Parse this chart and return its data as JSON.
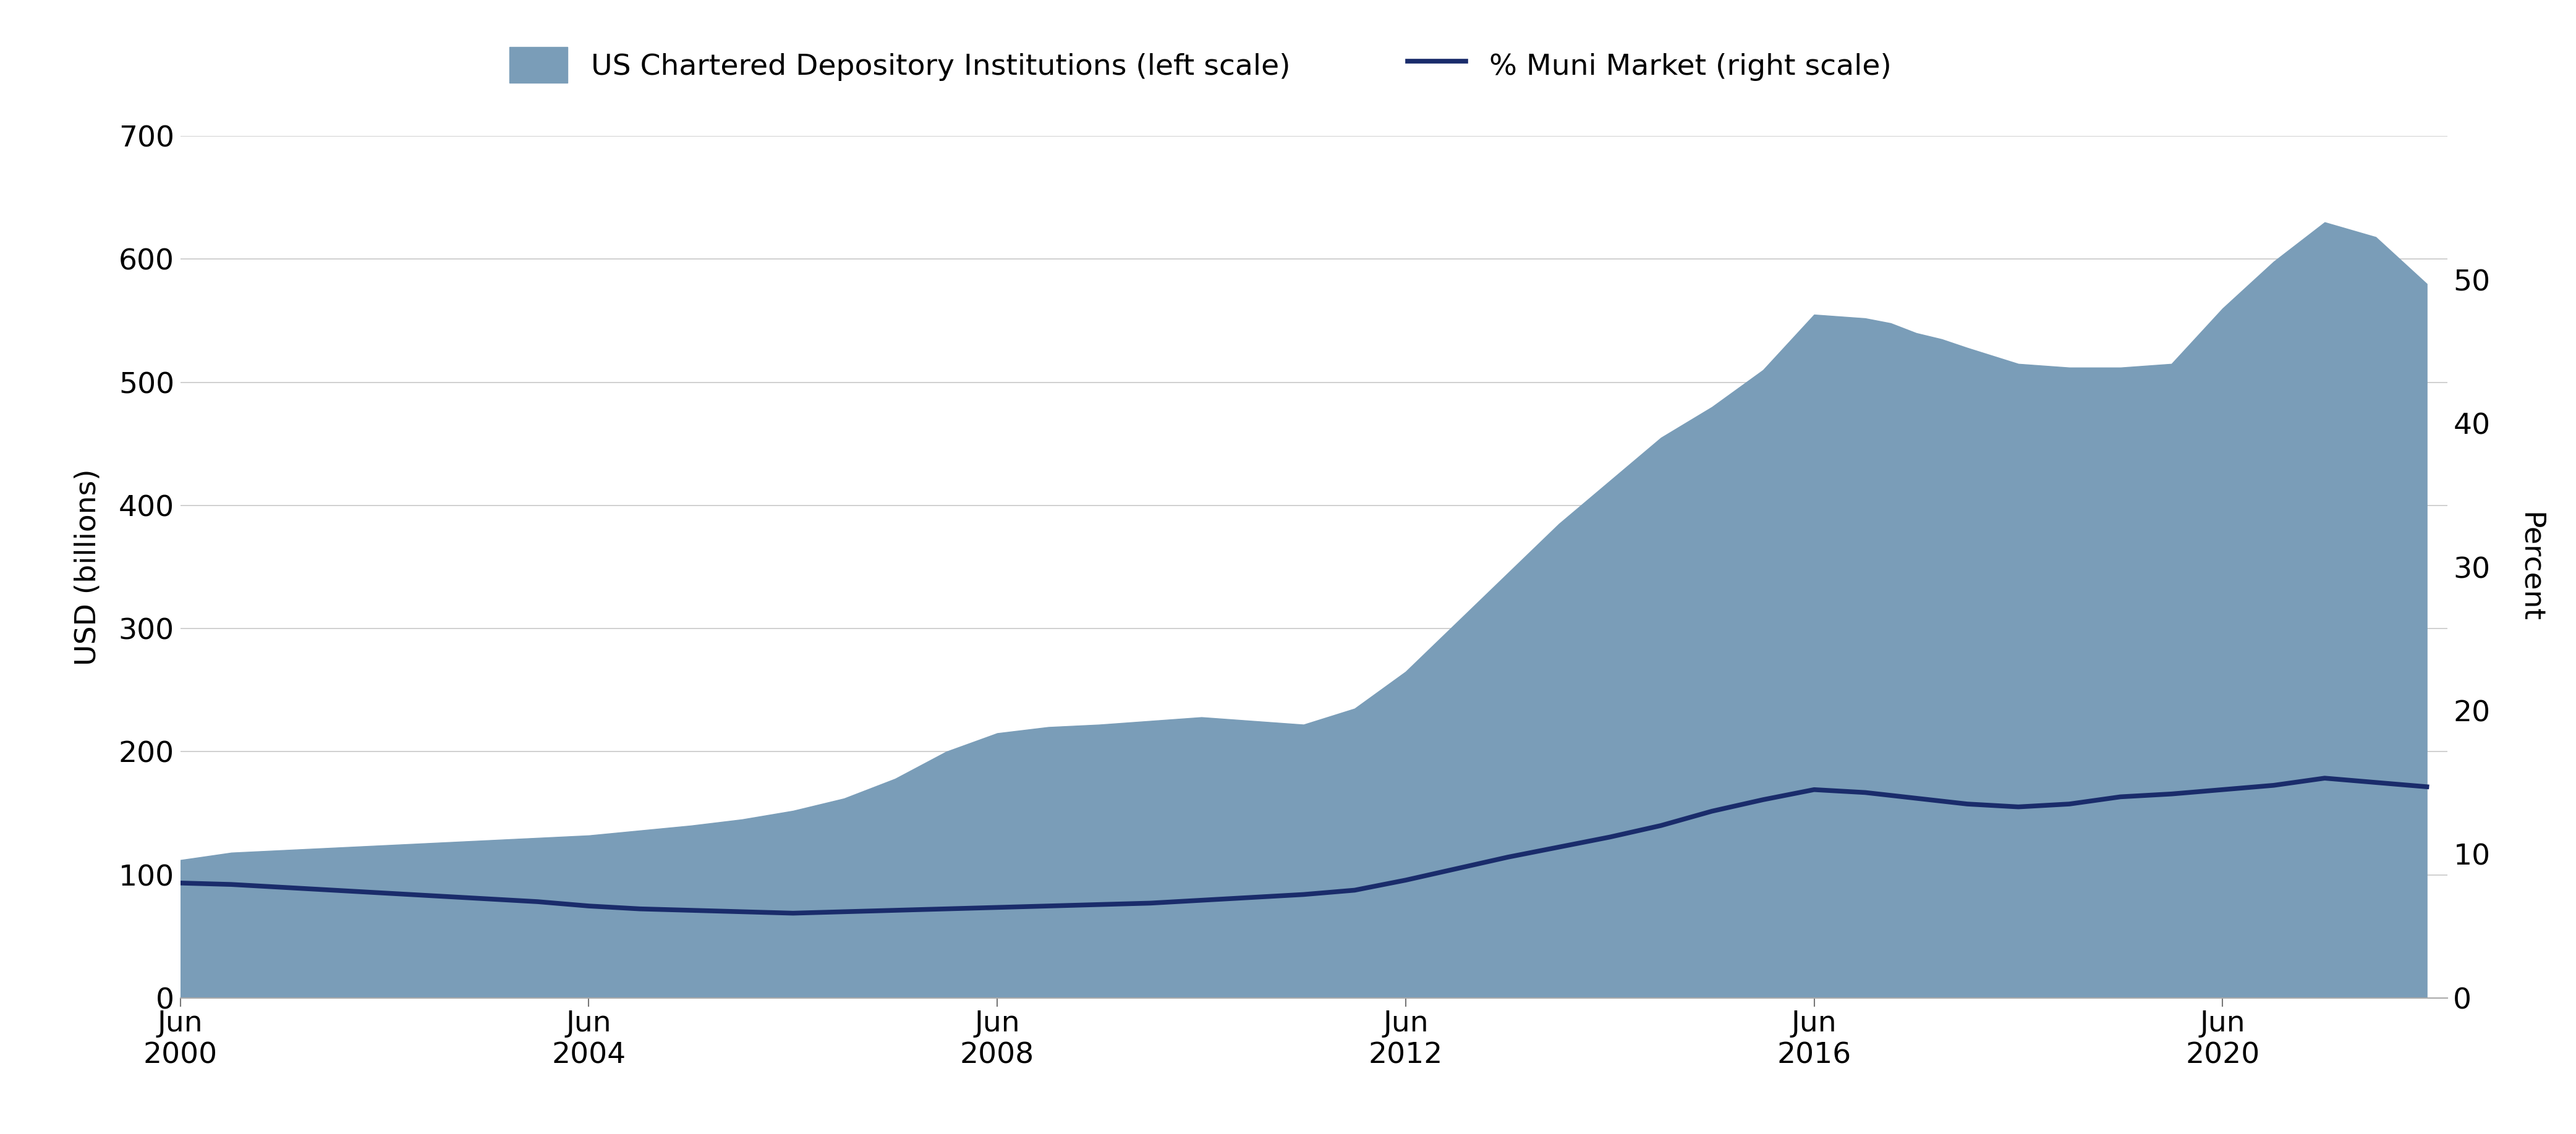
{
  "area_label": "US Chartered Depository Institutions (left scale)",
  "line_label": "% Muni Market (right scale)",
  "area_color": "#7a9db8",
  "line_color": "#1a2c6b",
  "ylabel_left": "USD (billions)",
  "ylabel_right": "Percent",
  "ylim_left": [
    0,
    700
  ],
  "ylim_right": [
    0,
    60
  ],
  "yticks_left": [
    0,
    100,
    200,
    300,
    400,
    500,
    600,
    700
  ],
  "yticks_right": [
    0,
    10,
    20,
    30,
    40,
    50
  ],
  "background_color": "#ffffff",
  "dates": [
    2000.5,
    2001.0,
    2001.5,
    2002.0,
    2002.5,
    2003.0,
    2003.5,
    2004.0,
    2004.5,
    2005.0,
    2005.5,
    2006.0,
    2006.5,
    2007.0,
    2007.5,
    2008.0,
    2008.5,
    2009.0,
    2009.5,
    2010.0,
    2010.5,
    2011.0,
    2011.5,
    2012.0,
    2012.5,
    2013.0,
    2013.5,
    2014.0,
    2014.5,
    2015.0,
    2015.5,
    2016.0,
    2016.5,
    2017.0,
    2017.25,
    2017.5,
    2017.75,
    2018.0,
    2018.5,
    2019.0,
    2019.5,
    2020.0,
    2020.5,
    2021.0,
    2021.5,
    2022.0,
    2022.5
  ],
  "area_values": [
    112,
    118,
    120,
    122,
    124,
    126,
    128,
    130,
    132,
    136,
    140,
    145,
    152,
    162,
    178,
    200,
    215,
    220,
    222,
    225,
    228,
    225,
    222,
    235,
    265,
    305,
    345,
    385,
    420,
    455,
    480,
    510,
    555,
    552,
    548,
    540,
    535,
    528,
    515,
    512,
    512,
    515,
    560,
    598,
    630,
    618,
    580
  ],
  "line_values": [
    8.0,
    7.9,
    7.7,
    7.5,
    7.3,
    7.1,
    6.9,
    6.7,
    6.4,
    6.2,
    6.1,
    6.0,
    5.9,
    6.0,
    6.1,
    6.2,
    6.3,
    6.4,
    6.5,
    6.6,
    6.8,
    7.0,
    7.2,
    7.5,
    8.2,
    9.0,
    9.8,
    10.5,
    11.2,
    12.0,
    13.0,
    13.8,
    14.5,
    14.3,
    14.1,
    13.9,
    13.7,
    13.5,
    13.3,
    13.5,
    14.0,
    14.2,
    14.5,
    14.8,
    15.3,
    15.0,
    14.7
  ],
  "xtick_positions": [
    2000.5,
    2004.5,
    2008.5,
    2012.5,
    2016.5,
    2020.5
  ],
  "xtick_labels": [
    "Jun\n2000",
    "Jun\n2004",
    "Jun\n2008",
    "Jun\n2012",
    "Jun\n2016",
    "Jun\n2020"
  ],
  "grid_color": "#c8c8c8",
  "legend_fontsize": 34,
  "axis_fontsize": 34,
  "tick_fontsize": 34,
  "linewidth": 5.5
}
